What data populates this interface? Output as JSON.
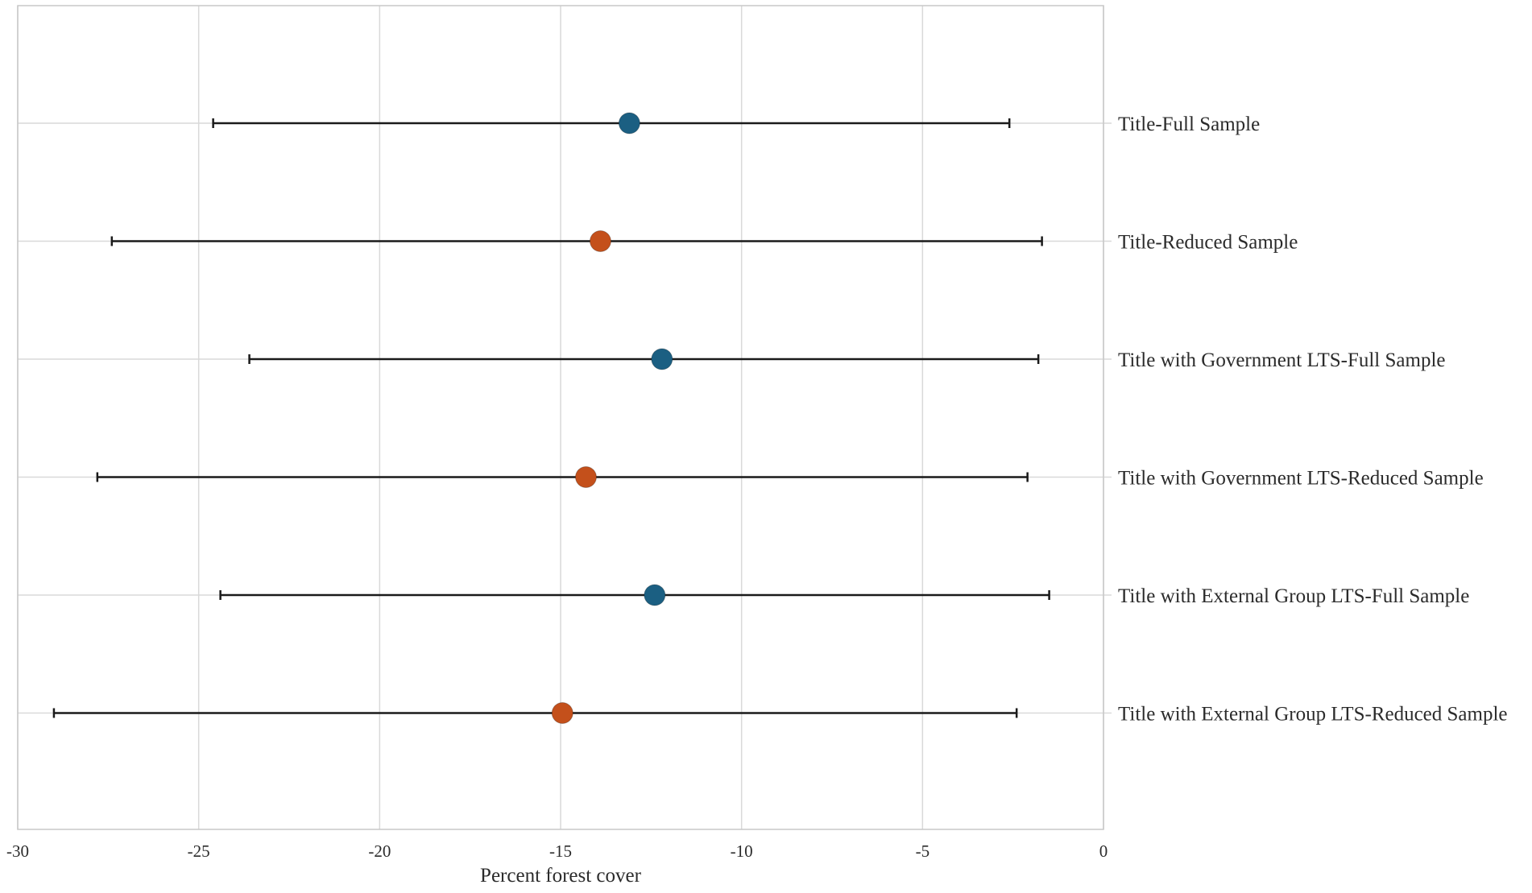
{
  "chart_data": {
    "type": "scatter",
    "subtype": "coefficient-plot",
    "title": "",
    "xlabel": "Percent forest cover",
    "ylabel": "",
    "xlim": [
      -30,
      0
    ],
    "xticks": [
      -30,
      -25,
      -20,
      -15,
      -10,
      -5,
      0
    ],
    "xtick_labels": [
      "-30",
      "-25",
      "-20",
      "-15",
      "-10",
      "-5",
      "0"
    ],
    "grid": true,
    "legend": "none",
    "colors": {
      "full_sample": "#1b5f82",
      "reduced_sample": "#c4501b"
    },
    "rows": [
      {
        "label": "Title-Full Sample",
        "estimate": -13.1,
        "ci_low": -24.6,
        "ci_high": -2.6,
        "group": "full_sample"
      },
      {
        "label": "Title-Reduced Sample",
        "estimate": -13.9,
        "ci_low": -27.4,
        "ci_high": -1.7,
        "group": "reduced_sample"
      },
      {
        "label": "Title with Government LTS-Full Sample",
        "estimate": -12.2,
        "ci_low": -23.6,
        "ci_high": -1.8,
        "group": "full_sample"
      },
      {
        "label": "Title with Government LTS-Reduced Sample",
        "estimate": -14.3,
        "ci_low": -27.8,
        "ci_high": -2.1,
        "group": "reduced_sample"
      },
      {
        "label": "Title with External Group LTS-Full Sample",
        "estimate": -12.4,
        "ci_low": -24.4,
        "ci_high": -1.5,
        "group": "full_sample"
      },
      {
        "label": "Title with External Group LTS-Reduced Sample",
        "estimate": -14.95,
        "ci_low": -29.0,
        "ci_high": -2.4,
        "group": "reduced_sample"
      }
    ]
  }
}
